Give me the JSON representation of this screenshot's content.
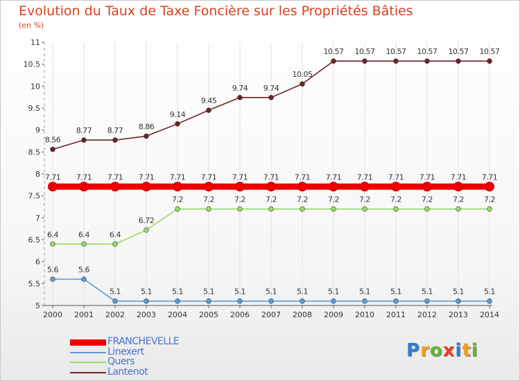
{
  "chart_data": {
    "type": "line",
    "title": "Evolution du Taux de Taxe Foncière sur les Propriétés Bâties",
    "subtitle": "(en %)",
    "x": [
      "2000",
      "2001",
      "2002",
      "2003",
      "2004",
      "2005",
      "2006",
      "2007",
      "2008",
      "2009",
      "2010",
      "2011",
      "2012",
      "2013",
      "2014"
    ],
    "ylim": [
      5,
      11
    ],
    "yticks": [
      "5",
      "5.5",
      "6",
      "6.5",
      "7",
      "7.5",
      "8",
      "8.5",
      "9",
      "9.5",
      "10",
      "10.5",
      "11"
    ],
    "series": [
      {
        "name": "FRANCHEVELLE",
        "color": "#ee0000",
        "values": [
          7.71,
          7.71,
          7.71,
          7.71,
          7.71,
          7.71,
          7.71,
          7.71,
          7.71,
          7.71,
          7.71,
          7.71,
          7.71,
          7.71,
          7.71
        ],
        "labels": [
          "7.71",
          "7.71",
          "7.71",
          "7.71",
          "7.71",
          "7.71",
          "7.71",
          "7.71",
          "7.71",
          "7.71",
          "7.71",
          "7.71",
          "7.71",
          "7.71",
          "7.71"
        ]
      },
      {
        "name": "Linexert",
        "color": "#5b9bd5",
        "values": [
          5.6,
          5.6,
          5.1,
          5.1,
          5.1,
          5.1,
          5.1,
          5.1,
          5.1,
          5.1,
          5.1,
          5.1,
          5.1,
          5.1,
          5.1
        ],
        "labels": [
          "5.6",
          "5.6",
          "5.1",
          "5.1",
          "5.1",
          "5.1",
          "5.1",
          "5.1",
          "5.1",
          "5.1",
          "5.1",
          "5.1",
          "5.1",
          "5.1",
          "5.1"
        ]
      },
      {
        "name": "Quers",
        "color": "#99d966",
        "values": [
          6.4,
          6.4,
          6.4,
          6.72,
          7.2,
          7.2,
          7.2,
          7.2,
          7.2,
          7.2,
          7.2,
          7.2,
          7.2,
          7.2,
          7.2
        ],
        "labels": [
          "6.4",
          "6.4",
          "6.4",
          "6.72",
          "7.2",
          "7.2",
          "7.2",
          "7.2",
          "7.2",
          "7.2",
          "7.2",
          "7.2",
          "7.2",
          "7.2",
          "7.2"
        ]
      },
      {
        "name": "Lantenot",
        "color": "#6b2326",
        "values": [
          8.56,
          8.77,
          8.77,
          8.86,
          9.14,
          9.45,
          9.74,
          9.74,
          10.05,
          10.57,
          10.57,
          10.57,
          10.57,
          10.57,
          10.57
        ],
        "labels": [
          "8.56",
          "8.77",
          "8.77",
          "8.86",
          "9.14",
          "9.45",
          "9.74",
          "9.74",
          "10.05",
          "10.57",
          "10.57",
          "10.57",
          "10.57",
          "10.57",
          "10.57"
        ]
      }
    ],
    "legend_position": "bottom-left"
  },
  "logo": {
    "letters": [
      "P",
      "r",
      "o",
      "x",
      "i",
      "t",
      "i"
    ],
    "colors": [
      "#2e7dd1",
      "#f0a020",
      "#5cb82e",
      "#e84020",
      "#2e7dd1",
      "#f0a020",
      "#5cb82e"
    ]
  }
}
